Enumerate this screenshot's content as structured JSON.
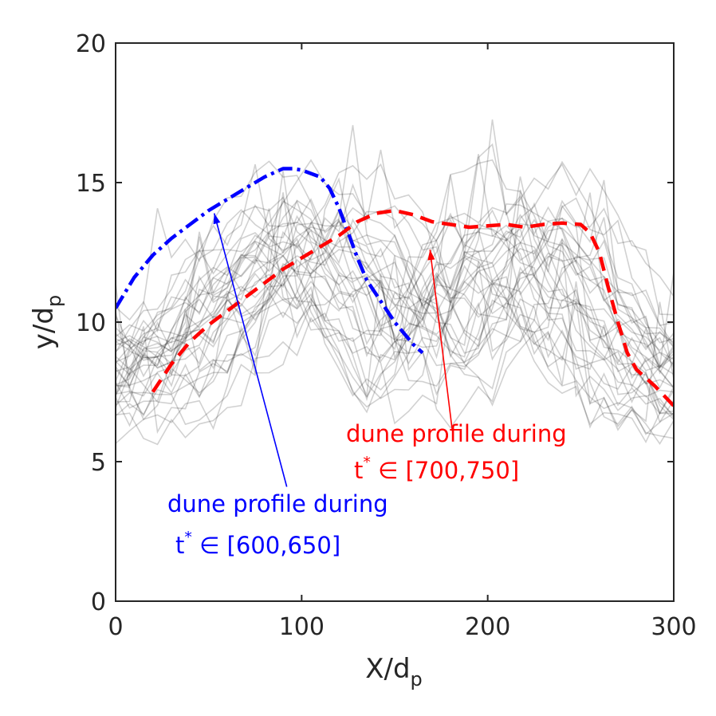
{
  "chart_data": {
    "type": "line",
    "xlabel": {
      "main": "X/d",
      "sub": "p"
    },
    "ylabel": {
      "main": "y/d",
      "sub": "p"
    },
    "xlim": [
      0,
      300
    ],
    "ylim": [
      0,
      20
    ],
    "xticks": [
      "0",
      "100",
      "200",
      "300"
    ],
    "yticks": [
      "0",
      "5",
      "10",
      "15",
      "20"
    ],
    "grid": false,
    "background_profiles": {
      "count": 36,
      "color": "#000000",
      "opacity": 0.18,
      "description": "instantaneous dune profiles (grey ensemble)"
    },
    "series": [
      {
        "name": "dune profile during t* ∈ [600,650]",
        "color": "#0000ff",
        "style": "dash-dot",
        "x": [
          0,
          10,
          20,
          30,
          40,
          50,
          60,
          70,
          80,
          90,
          95,
          100,
          110,
          115,
          120,
          125,
          130,
          135,
          140,
          150,
          160,
          165
        ],
        "y": [
          10.5,
          11.6,
          12.4,
          13.0,
          13.5,
          14.0,
          14.4,
          14.8,
          15.2,
          15.5,
          15.5,
          15.45,
          15.2,
          14.8,
          14.1,
          13.2,
          12.3,
          11.5,
          11.0,
          10.0,
          9.2,
          8.9
        ]
      },
      {
        "name": "dune profile during t* ∈ [700,750]",
        "color": "#ff0000",
        "style": "dashed",
        "x": [
          20,
          30,
          40,
          50,
          60,
          70,
          80,
          90,
          100,
          110,
          120,
          130,
          140,
          150,
          160,
          170,
          180,
          190,
          200,
          210,
          220,
          230,
          240,
          250,
          255,
          260,
          265,
          270,
          275,
          280,
          290,
          300
        ],
        "y": [
          7.5,
          8.5,
          9.3,
          9.9,
          10.4,
          10.9,
          11.4,
          11.9,
          12.3,
          12.7,
          13.1,
          13.6,
          13.9,
          14.0,
          13.85,
          13.6,
          13.5,
          13.4,
          13.45,
          13.5,
          13.4,
          13.5,
          13.55,
          13.5,
          13.2,
          12.5,
          11.2,
          10.0,
          8.9,
          8.3,
          7.7,
          7.0
        ]
      }
    ],
    "annotations": [
      {
        "series": 0,
        "line1": "dune profile during",
        "prefix": "t",
        "sup": "*",
        "symbol": " ∈ ",
        "range": "[600,650]",
        "color": "#0000ff",
        "arrow_to": [
          53,
          13.9
        ],
        "arrow_from": [
          92,
          4.1
        ]
      },
      {
        "series": 1,
        "line1": "dune profile during",
        "prefix": "t",
        "sup": "*",
        "symbol": " ∈ ",
        "range": "[700,750]",
        "color": "#ff0000",
        "arrow_to": [
          169,
          12.6
        ],
        "arrow_from": [
          181,
          6.1
        ]
      }
    ]
  }
}
